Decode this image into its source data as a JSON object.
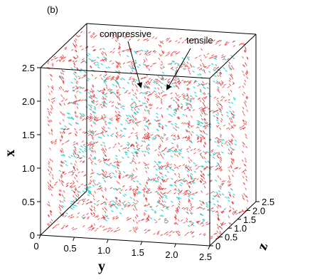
{
  "chart_data": {
    "type": "quiver3d",
    "panel_label": "(b)",
    "xlabel": "x",
    "ylabel": "y",
    "zlabel": "z",
    "xlim": [
      0,
      2.5
    ],
    "ylim": [
      0,
      2.5
    ],
    "zlim": [
      0,
      2.5
    ],
    "xticks": [
      0,
      0.5,
      {
        "value": 1,
        "label": "1.0"
      },
      1.5,
      {
        "value": 2,
        "label": "2.0"
      },
      2.5
    ],
    "yticks": [
      0,
      0.5,
      {
        "value": 1,
        "label": "1.0"
      },
      1.5,
      {
        "value": 2,
        "label": "2.0"
      },
      2.5
    ],
    "zticks": [
      0,
      0.5,
      {
        "value": 1,
        "label": "1.0"
      },
      1.5,
      {
        "value": 2,
        "label": "2.0"
      },
      2.5
    ],
    "annotations": [
      "compressive",
      "tensile"
    ],
    "colors": [
      "#e23a3a",
      "#3fd6cf"
    ]
  }
}
